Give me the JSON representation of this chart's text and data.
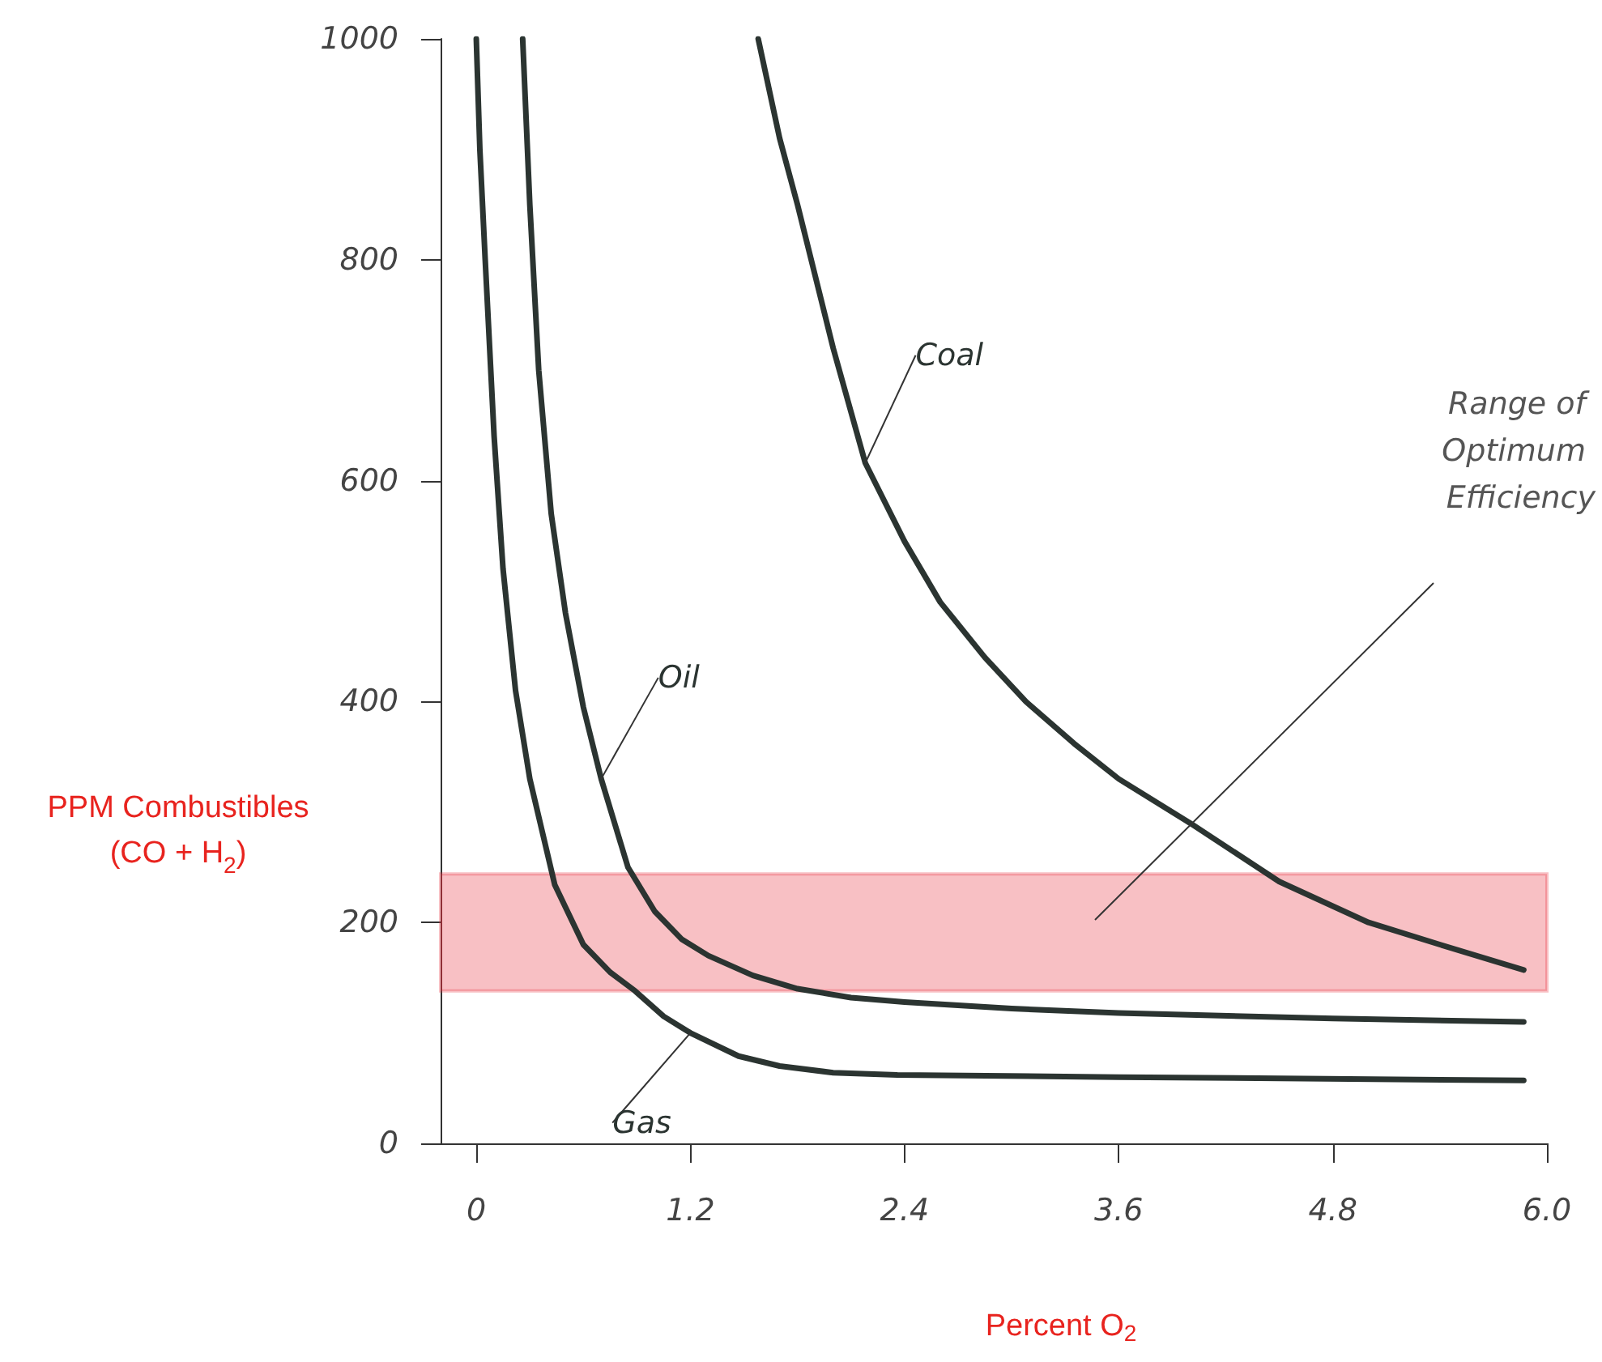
{
  "chart_data": {
    "type": "line",
    "xlabel": "Percent O$_{2}$",
    "ylabel": "PPM Combustibles (CO + H$_{2}$)",
    "xlim": [
      -0.2,
      6.0
    ],
    "ylim": [
      0,
      1000
    ],
    "xticks": [
      0,
      1.2,
      2.4,
      3.6,
      4.8,
      {
        "value": 6,
        "label": "6.0"
      }
    ],
    "yticks": [
      0,
      200,
      400,
      600,
      800,
      1000
    ],
    "grid": false,
    "legend": false,
    "marker": "none",
    "line_style": "solid",
    "series": [
      {
        "name": "Gas",
        "color": "#2b3431",
        "x": [
          0,
          0.02,
          0.05,
          0.1,
          0.15,
          0.22,
          0.3,
          0.44,
          0.6,
          0.75,
          0.89,
          1.05,
          1.2,
          1.47,
          1.7,
          2.0,
          2.36,
          3.6,
          5.87
        ],
        "values": [
          1000,
          900,
          800,
          640,
          520,
          410,
          330,
          234,
          180,
          155,
          138,
          115,
          100,
          79,
          70,
          64,
          62,
          60,
          57
        ]
      },
      {
        "name": "Oil",
        "color": "#2b3431",
        "x": [
          0.26,
          0.3,
          0.35,
          0.42,
          0.5,
          0.6,
          0.7,
          0.85,
          1.0,
          1.15,
          1.3,
          1.55,
          1.8,
          2.1,
          2.4,
          3.0,
          3.6,
          4.8,
          5.87
        ],
        "values": [
          1000,
          850,
          700,
          570,
          480,
          395,
          330,
          250,
          210,
          185,
          170,
          152,
          140,
          132,
          128,
          122,
          118,
          113,
          110
        ]
      },
      {
        "name": "Coal",
        "color": "#2b3431",
        "x": [
          1.58,
          1.7,
          1.8,
          2.0,
          2.18,
          2.4,
          2.6,
          2.85,
          3.08,
          3.35,
          3.6,
          4.0,
          4.5,
          5.0,
          5.4,
          5.87
        ],
        "values": [
          1000,
          910,
          850,
          720,
          616,
          545,
          490,
          440,
          400,
          362,
          330,
          290,
          237,
          200,
          180,
          157
        ]
      }
    ],
    "bands": [
      {
        "axis": "y",
        "from": 138,
        "to": 244,
        "color": "#e8303a"
      }
    ],
    "annotations": [
      "Range of Optimum Efficiency"
    ]
  }
}
